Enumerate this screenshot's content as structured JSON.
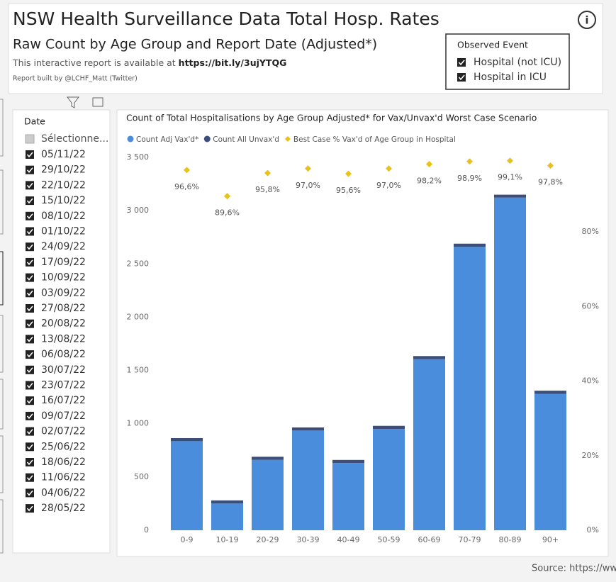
{
  "header": {
    "title": "NSW Health Surveillance Data Total Hosp. Rates",
    "subtitle": "Raw Count by Age Group and Report Date (Adjusted*)",
    "link_text": "This interactive report is available at",
    "link": "https://bit.ly/3ujYTQG",
    "credit": "Report built by @LCHF_Matt (Twitter)"
  },
  "event_filter": {
    "title": "Observed Event",
    "items": [
      "Hospital (not ICU)",
      "Hospital in ICU"
    ]
  },
  "slicer": {
    "title": "Date",
    "select_all": "Sélectionne...",
    "items": [
      "05/11/22",
      "29/10/22",
      "22/10/22",
      "15/10/22",
      "08/10/22",
      "01/10/22",
      "24/09/22",
      "17/09/22",
      "10/09/22",
      "03/09/22",
      "27/08/22",
      "20/08/22",
      "13/08/22",
      "06/08/22",
      "30/07/22",
      "23/07/22",
      "16/07/22",
      "09/07/22",
      "02/07/22",
      "25/06/22",
      "18/06/22",
      "11/06/22",
      "04/06/22",
      "28/05/22"
    ]
  },
  "source": "Source: https://ww",
  "chart_data": {
    "type": "bar",
    "stacked": true,
    "title": "Count of Total Hospitalisations by Age Group Adjusted* for Vax/Unvax'd Worst Case Scenario",
    "categories": [
      "0-9",
      "10-19",
      "20-29",
      "30-39",
      "40-49",
      "50-59",
      "60-69",
      "70-79",
      "80-89",
      "90+"
    ],
    "series": [
      {
        "name": "Count Adj Vax'd*",
        "color": "#4a8ddc",
        "values": [
          836,
          251,
          661,
          936,
          631,
          951,
          1606,
          2660,
          3122,
          1281
        ]
      },
      {
        "name": "Count All Unvax'd",
        "color": "#3c4e7a",
        "values": [
          29,
          29,
          29,
          29,
          29,
          29,
          29,
          30,
          28,
          29
        ]
      },
      {
        "name": "Best Case % Vax'd of Age Group in Hospital",
        "color": "#e8c21a",
        "type": "scatter",
        "axis": "y2",
        "values": [
          96.6,
          89.6,
          95.8,
          97.0,
          95.6,
          97.0,
          98.2,
          98.9,
          99.1,
          97.8
        ],
        "value_labels": [
          "96,6%",
          "89,6%",
          "95,8%",
          "97,0%",
          "95,6%",
          "97,0%",
          "98,2%",
          "98,9%",
          "99,1%",
          "97,8%"
        ]
      }
    ],
    "ylim": [
      0,
      3500
    ],
    "yticks": [
      0,
      500,
      {
        "value": 1000,
        "label": "1 000"
      },
      {
        "value": 1500,
        "label": "1 500"
      },
      {
        "value": 2000,
        "label": "2 000"
      },
      {
        "value": 2500,
        "label": "2 500"
      },
      {
        "value": 3000,
        "label": "3 000"
      },
      {
        "value": 3500,
        "label": "3 500"
      }
    ],
    "y2lim": [
      0,
      100
    ],
    "y2ticks": [
      {
        "value": 0,
        "label": "0%"
      },
      {
        "value": 20,
        "label": "20%"
      },
      {
        "value": 40,
        "label": "40%"
      },
      {
        "value": 60,
        "label": "60%"
      },
      {
        "value": 80,
        "label": "80%"
      }
    ]
  }
}
